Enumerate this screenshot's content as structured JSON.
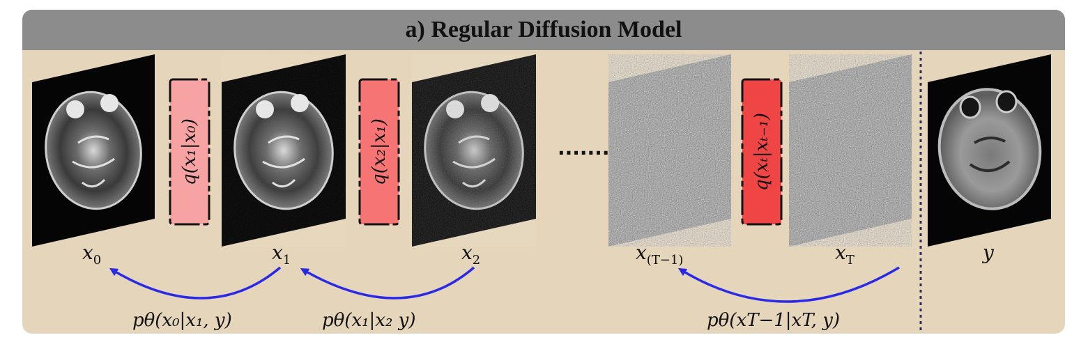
{
  "title": "a) Regular Diffusion Model",
  "states": [
    {
      "id": "x0",
      "base": "x",
      "sub": "0"
    },
    {
      "id": "x1",
      "base": "x",
      "sub": "1"
    },
    {
      "id": "x2",
      "base": "x",
      "sub": "2"
    },
    {
      "id": "xT1",
      "base": "x",
      "sub": "(T−1)"
    },
    {
      "id": "xT",
      "base": "x",
      "sub": "T"
    }
  ],
  "condition_image": {
    "label": "y"
  },
  "ellipsis": "........",
  "forward_steps": [
    {
      "text": "q(x₁|x₀)",
      "color": "#f7a3a3"
    },
    {
      "text": "q(x₂|x₁)",
      "color": "#f77474"
    },
    {
      "text": "q(xₜ|xₜ₋₁)",
      "color": "#f04545"
    }
  ],
  "reverse_steps": [
    {
      "text": "pθ(x₀|x₁, y)"
    },
    {
      "text": "pθ(x₁|x₂  y)"
    },
    {
      "text": "pθ(xT−1|xT, y)"
    }
  ],
  "colors": {
    "background": "#e5d6bb",
    "title_bar": "#8c8c8c",
    "arrow": "#2a2ae6",
    "divider": "#2c2c5a"
  }
}
